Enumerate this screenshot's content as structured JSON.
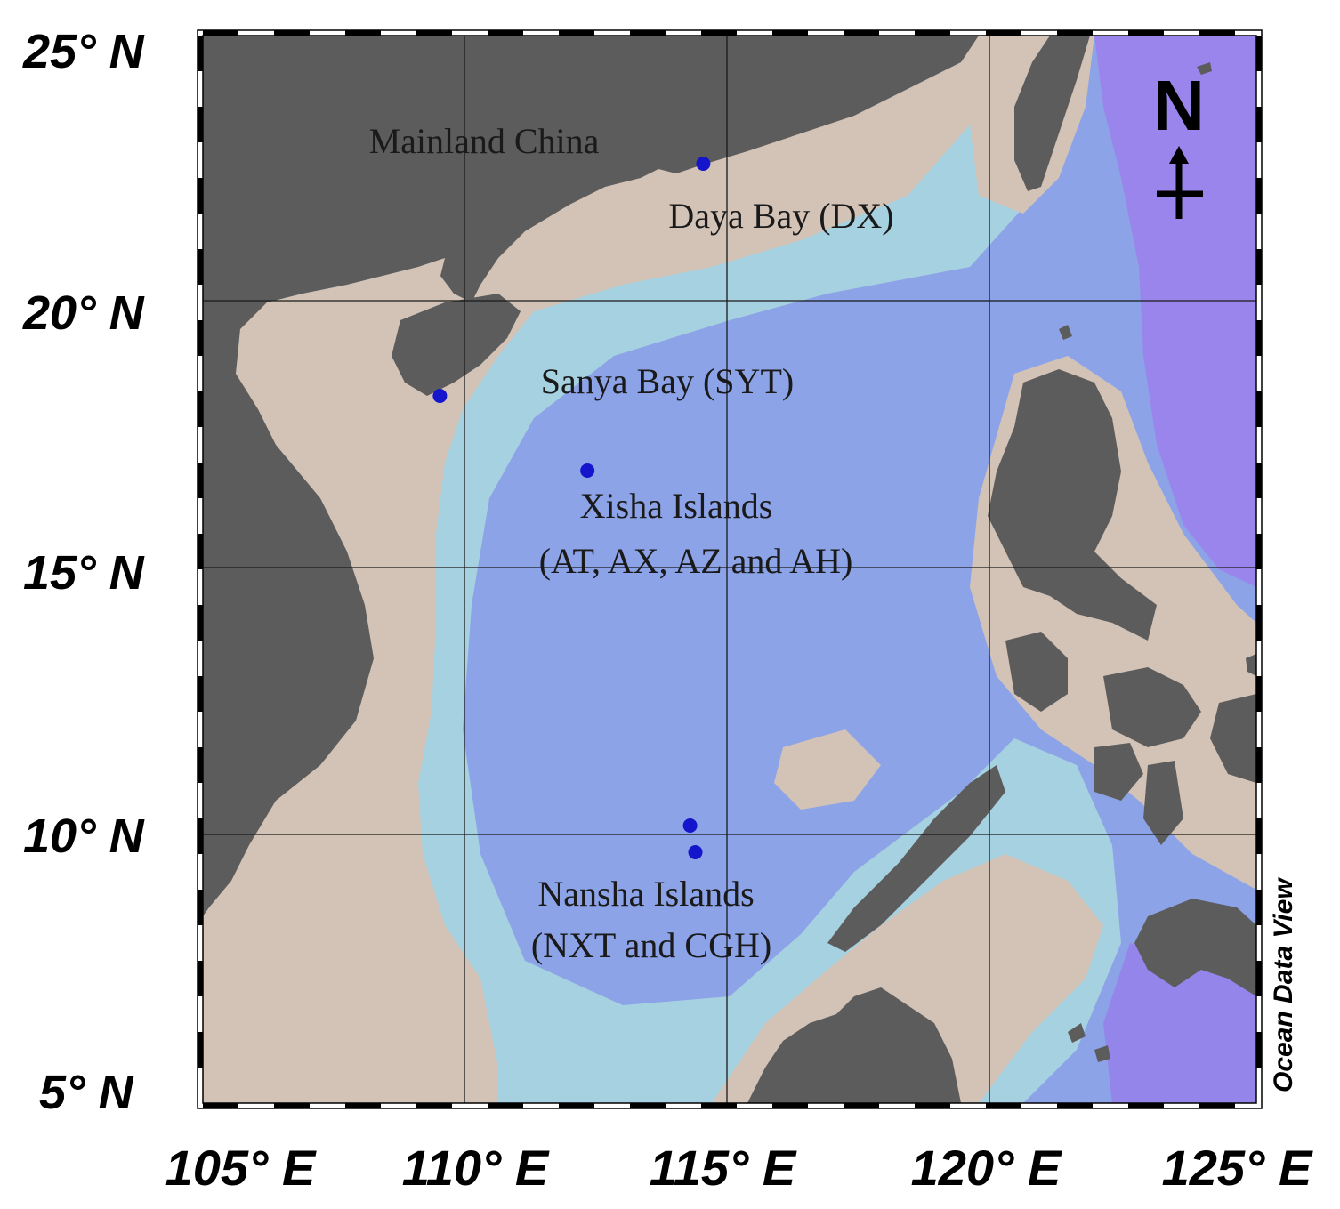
{
  "map": {
    "credit": "Ocean Data View",
    "north_letter": "N",
    "latitude_ticks": [
      {
        "label": "25° N",
        "value": 25
      },
      {
        "label": "20° N",
        "value": 20
      },
      {
        "label": "15° N",
        "value": 15
      },
      {
        "label": "10° N",
        "value": 10
      },
      {
        "label": "5° N",
        "value": 5
      }
    ],
    "longitude_ticks": [
      {
        "label": "105° E",
        "value": 105
      },
      {
        "label": "110° E",
        "value": 110
      },
      {
        "label": "115° E",
        "value": 115
      },
      {
        "label": "120° E",
        "value": 120
      },
      {
        "label": "125° E",
        "value": 125
      }
    ],
    "lat_range": [
      5,
      25
    ],
    "lon_range": [
      105,
      125
    ],
    "region_labels": {
      "mainland": "Mainland China",
      "daya": "Daya Bay (DX)",
      "sanya": "Sanya Bay (SYT)",
      "xisha_1": "Xisha Islands",
      "xisha_2": "(AT, AX, AZ and AH)",
      "nansha_1": "Nansha Islands",
      "nansha_2": "(NXT and CGH)"
    },
    "stations": [
      {
        "name": "Daya Bay",
        "lon": 114.5,
        "lat": 22.6
      },
      {
        "name": "Sanya Bay",
        "lon": 109.5,
        "lat": 18.25
      },
      {
        "name": "Xisha Islands",
        "lon": 112.3,
        "lat": 16.85
      },
      {
        "name": "Nansha Islands 1",
        "lon": 114.25,
        "lat": 10.2
      },
      {
        "name": "Nansha Islands 2",
        "lon": 114.35,
        "lat": 9.7
      }
    ],
    "colors": {
      "land": "#5c5c5c",
      "shelf": "#d3c3b7",
      "slope": "#a6d1e0",
      "deep": "#8ca3e8",
      "abyss": "#9a85ec",
      "station": "#1515cc",
      "grid": "#1a1a1a"
    }
  }
}
